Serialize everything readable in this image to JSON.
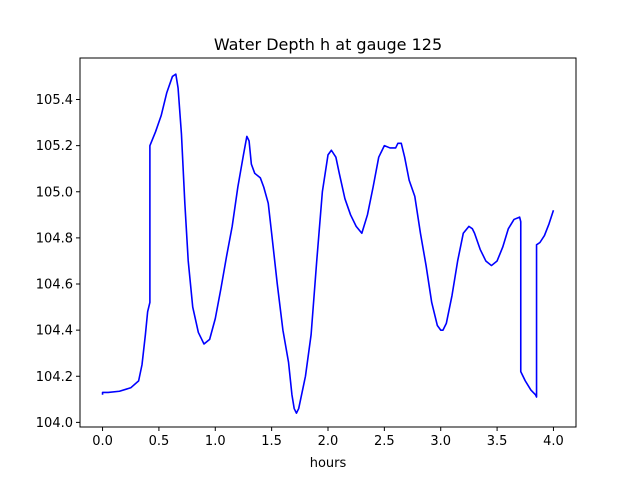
{
  "chart_data": {
    "type": "line",
    "title": "Water Depth h at gauge 125",
    "xlabel": "hours",
    "ylabel": "",
    "xlim": [
      -0.2,
      4.2
    ],
    "ylim": [
      103.98,
      105.58
    ],
    "xticks": [
      0.0,
      0.5,
      1.0,
      1.5,
      2.0,
      2.5,
      3.0,
      3.5,
      4.0
    ],
    "xtick_labels": [
      "0.0",
      "0.5",
      "1.0",
      "1.5",
      "2.0",
      "2.5",
      "3.0",
      "3.5",
      "4.0"
    ],
    "yticks": [
      104.0,
      104.2,
      104.4,
      104.6,
      104.8,
      105.0,
      105.2,
      105.4
    ],
    "ytick_labels": [
      "104.0",
      "104.2",
      "104.4",
      "104.6",
      "104.8",
      "105.0",
      "105.2",
      "105.4"
    ],
    "grid": false,
    "series": [
      {
        "color": "#0000ff",
        "x": [
          0.0,
          0.0,
          0.05,
          0.15,
          0.25,
          0.32,
          0.35,
          0.38,
          0.4,
          0.42,
          0.42,
          0.47,
          0.52,
          0.57,
          0.62,
          0.65,
          0.67,
          0.7,
          0.73,
          0.76,
          0.8,
          0.85,
          0.9,
          0.95,
          1.0,
          1.05,
          1.1,
          1.15,
          1.2,
          1.25,
          1.28,
          1.3,
          1.32,
          1.35,
          1.4,
          1.43,
          1.47,
          1.5,
          1.55,
          1.6,
          1.65,
          1.68,
          1.7,
          1.72,
          1.74,
          1.77,
          1.8,
          1.85,
          1.9,
          1.95,
          2.0,
          2.03,
          2.07,
          2.1,
          2.15,
          2.2,
          2.25,
          2.3,
          2.35,
          2.4,
          2.45,
          2.5,
          2.55,
          2.6,
          2.62,
          2.65,
          2.68,
          2.72,
          2.77,
          2.82,
          2.87,
          2.92,
          2.97,
          3.0,
          3.02,
          3.05,
          3.1,
          3.15,
          3.2,
          3.25,
          3.28,
          3.3,
          3.35,
          3.4,
          3.45,
          3.5,
          3.55,
          3.6,
          3.65,
          3.7,
          3.71,
          3.71,
          3.75,
          3.8,
          3.84,
          3.85,
          3.85,
          3.88,
          3.92,
          3.96,
          4.0
        ],
        "y": [
          104.12,
          104.13,
          104.13,
          104.135,
          104.15,
          104.18,
          104.25,
          104.38,
          104.48,
          104.52,
          105.2,
          105.26,
          105.33,
          105.43,
          105.5,
          105.51,
          105.45,
          105.25,
          104.95,
          104.7,
          104.5,
          104.39,
          104.34,
          104.36,
          104.45,
          104.58,
          104.72,
          104.85,
          105.02,
          105.16,
          105.24,
          105.22,
          105.12,
          105.08,
          105.06,
          105.02,
          104.95,
          104.82,
          104.6,
          104.4,
          104.26,
          104.12,
          104.06,
          104.04,
          104.06,
          104.13,
          104.2,
          104.38,
          104.7,
          105.0,
          105.16,
          105.18,
          105.15,
          105.08,
          104.97,
          104.9,
          104.85,
          104.82,
          104.9,
          105.02,
          105.15,
          105.2,
          105.19,
          105.19,
          105.21,
          105.21,
          105.15,
          105.05,
          104.98,
          104.82,
          104.68,
          104.52,
          104.42,
          104.4,
          104.4,
          104.43,
          104.55,
          104.7,
          104.82,
          104.85,
          104.84,
          104.82,
          104.75,
          104.7,
          104.68,
          104.7,
          104.76,
          104.84,
          104.88,
          104.89,
          104.87,
          104.22,
          104.18,
          104.14,
          104.12,
          104.11,
          104.77,
          104.78,
          104.81,
          104.86,
          104.92
        ]
      }
    ]
  }
}
